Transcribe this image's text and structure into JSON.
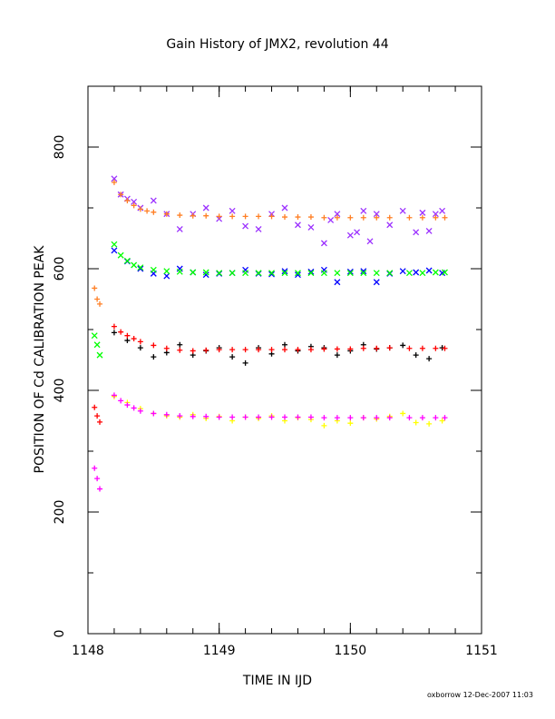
{
  "chart_data": {
    "type": "scatter",
    "title": "Gain History of JMX2, revolution 44",
    "xlabel": "TIME IN IJD",
    "ylabel": "POSITION OF Cd CALIBRATION PEAK",
    "xlim": [
      1148,
      1151
    ],
    "ylim": [
      0,
      900
    ],
    "xticks": [
      1148,
      1149,
      1150,
      1151
    ],
    "yticks": [
      0,
      200,
      400,
      600,
      800
    ],
    "xtick_labels": [
      "1148",
      "1149",
      "1150",
      "1151"
    ],
    "ytick_labels": [
      "0",
      "200",
      "400",
      "600",
      "800"
    ],
    "grid": false,
    "legend": "none",
    "footer": "oxborrow 12-Dec-2007 11:03",
    "colors": {
      "purple": "#9b30ff",
      "orange": "#ff7f24",
      "blue": "#0000ff",
      "green": "#00ff00",
      "black": "#000000",
      "red": "#ff0000",
      "yellow": "#ffff00",
      "magenta": "#ff00ff"
    },
    "series": [
      {
        "color": "purple",
        "marker": "x",
        "points": [
          [
            1148.2,
            748
          ],
          [
            1148.25,
            722
          ],
          [
            1148.3,
            715
          ],
          [
            1148.35,
            710
          ],
          [
            1148.4,
            700
          ],
          [
            1148.5,
            712
          ],
          [
            1148.6,
            690
          ],
          [
            1148.7,
            665
          ],
          [
            1148.8,
            690
          ],
          [
            1148.9,
            700
          ],
          [
            1149.0,
            682
          ],
          [
            1149.1,
            695
          ],
          [
            1149.2,
            670
          ],
          [
            1149.3,
            665
          ],
          [
            1149.4,
            690
          ],
          [
            1149.5,
            700
          ],
          [
            1149.6,
            672
          ],
          [
            1149.7,
            668
          ],
          [
            1149.8,
            642
          ],
          [
            1149.85,
            680
          ],
          [
            1149.9,
            690
          ],
          [
            1150.0,
            655
          ],
          [
            1150.05,
            660
          ],
          [
            1150.1,
            695
          ],
          [
            1150.15,
            645
          ],
          [
            1150.2,
            690
          ],
          [
            1150.3,
            672
          ],
          [
            1150.4,
            695
          ],
          [
            1150.5,
            660
          ],
          [
            1150.55,
            692
          ],
          [
            1150.6,
            662
          ],
          [
            1150.65,
            690
          ],
          [
            1150.7,
            695
          ]
        ]
      },
      {
        "color": "orange",
        "marker": "+",
        "points": [
          [
            1148.05,
            568
          ],
          [
            1148.07,
            550
          ],
          [
            1148.09,
            542
          ],
          [
            1148.2,
            742
          ],
          [
            1148.25,
            722
          ],
          [
            1148.3,
            712
          ],
          [
            1148.35,
            704
          ],
          [
            1148.4,
            698
          ],
          [
            1148.45,
            695
          ],
          [
            1148.5,
            693
          ],
          [
            1148.6,
            690
          ],
          [
            1148.7,
            688
          ],
          [
            1148.8,
            687
          ],
          [
            1148.9,
            687
          ],
          [
            1149.0,
            686
          ],
          [
            1149.1,
            686
          ],
          [
            1149.2,
            686
          ],
          [
            1149.3,
            686
          ],
          [
            1149.4,
            686
          ],
          [
            1149.5,
            685
          ],
          [
            1149.6,
            685
          ],
          [
            1149.7,
            685
          ],
          [
            1149.8,
            684
          ],
          [
            1149.9,
            684
          ],
          [
            1150.0,
            684
          ],
          [
            1150.1,
            684
          ],
          [
            1150.2,
            684
          ],
          [
            1150.3,
            684
          ],
          [
            1150.45,
            684
          ],
          [
            1150.55,
            684
          ],
          [
            1150.65,
            684
          ],
          [
            1150.72,
            684
          ]
        ]
      },
      {
        "color": "blue",
        "marker": "x",
        "points": [
          [
            1148.2,
            630
          ],
          [
            1148.3,
            612
          ],
          [
            1148.4,
            600
          ],
          [
            1148.5,
            592
          ],
          [
            1148.6,
            588
          ],
          [
            1148.7,
            600
          ],
          [
            1148.8,
            594
          ],
          [
            1148.9,
            590
          ],
          [
            1149.0,
            592
          ],
          [
            1149.1,
            593
          ],
          [
            1149.2,
            598
          ],
          [
            1149.3,
            592
          ],
          [
            1149.4,
            591
          ],
          [
            1149.5,
            596
          ],
          [
            1149.6,
            590
          ],
          [
            1149.7,
            595
          ],
          [
            1149.8,
            598
          ],
          [
            1149.9,
            578
          ],
          [
            1150.0,
            595
          ],
          [
            1150.1,
            596
          ],
          [
            1150.2,
            578
          ],
          [
            1150.3,
            592
          ],
          [
            1150.4,
            596
          ],
          [
            1150.5,
            594
          ],
          [
            1150.6,
            597
          ],
          [
            1150.7,
            593
          ]
        ]
      },
      {
        "color": "green",
        "marker": "x",
        "points": [
          [
            1148.05,
            490
          ],
          [
            1148.07,
            475
          ],
          [
            1148.09,
            458
          ],
          [
            1148.2,
            640
          ],
          [
            1148.25,
            622
          ],
          [
            1148.3,
            613
          ],
          [
            1148.35,
            606
          ],
          [
            1148.4,
            602
          ],
          [
            1148.5,
            598
          ],
          [
            1148.6,
            596
          ],
          [
            1148.7,
            595
          ],
          [
            1148.8,
            594
          ],
          [
            1148.9,
            594
          ],
          [
            1149.0,
            593
          ],
          [
            1149.1,
            593
          ],
          [
            1149.2,
            593
          ],
          [
            1149.3,
            593
          ],
          [
            1149.4,
            593
          ],
          [
            1149.5,
            593
          ],
          [
            1149.6,
            593
          ],
          [
            1149.7,
            593
          ],
          [
            1149.8,
            593
          ],
          [
            1149.9,
            593
          ],
          [
            1150.0,
            593
          ],
          [
            1150.1,
            593
          ],
          [
            1150.2,
            593
          ],
          [
            1150.3,
            593
          ],
          [
            1150.45,
            593
          ],
          [
            1150.55,
            593
          ],
          [
            1150.65,
            594
          ],
          [
            1150.72,
            594
          ]
        ]
      },
      {
        "color": "black",
        "marker": "+",
        "points": [
          [
            1148.2,
            495
          ],
          [
            1148.3,
            482
          ],
          [
            1148.4,
            470
          ],
          [
            1148.5,
            455
          ],
          [
            1148.6,
            462
          ],
          [
            1148.7,
            475
          ],
          [
            1148.8,
            458
          ],
          [
            1148.9,
            465
          ],
          [
            1149.0,
            470
          ],
          [
            1149.1,
            455
          ],
          [
            1149.2,
            445
          ],
          [
            1149.3,
            470
          ],
          [
            1149.4,
            460
          ],
          [
            1149.5,
            475
          ],
          [
            1149.6,
            465
          ],
          [
            1149.7,
            472
          ],
          [
            1149.8,
            470
          ],
          [
            1149.9,
            458
          ],
          [
            1150.0,
            465
          ],
          [
            1150.1,
            475
          ],
          [
            1150.2,
            468
          ],
          [
            1150.3,
            470
          ],
          [
            1150.4,
            474
          ],
          [
            1150.5,
            458
          ],
          [
            1150.6,
            452
          ],
          [
            1150.7,
            470
          ]
        ]
      },
      {
        "color": "red",
        "marker": "+",
        "points": [
          [
            1148.05,
            372
          ],
          [
            1148.07,
            358
          ],
          [
            1148.09,
            348
          ],
          [
            1148.2,
            505
          ],
          [
            1148.25,
            496
          ],
          [
            1148.3,
            490
          ],
          [
            1148.35,
            485
          ],
          [
            1148.4,
            480
          ],
          [
            1148.5,
            474
          ],
          [
            1148.6,
            469
          ],
          [
            1148.7,
            466
          ],
          [
            1148.8,
            465
          ],
          [
            1148.9,
            466
          ],
          [
            1149.0,
            467
          ],
          [
            1149.1,
            467
          ],
          [
            1149.2,
            467
          ],
          [
            1149.3,
            467
          ],
          [
            1149.4,
            467
          ],
          [
            1149.5,
            467
          ],
          [
            1149.6,
            467
          ],
          [
            1149.7,
            467
          ],
          [
            1149.8,
            468
          ],
          [
            1149.9,
            468
          ],
          [
            1150.0,
            468
          ],
          [
            1150.1,
            469
          ],
          [
            1150.2,
            469
          ],
          [
            1150.3,
            470
          ],
          [
            1150.45,
            469
          ],
          [
            1150.55,
            469
          ],
          [
            1150.65,
            469
          ],
          [
            1150.72,
            469
          ]
        ]
      },
      {
        "color": "yellow",
        "marker": "+",
        "points": [
          [
            1148.2,
            390
          ],
          [
            1148.3,
            380
          ],
          [
            1148.4,
            370
          ],
          [
            1148.5,
            362
          ],
          [
            1148.6,
            358
          ],
          [
            1148.7,
            356
          ],
          [
            1148.8,
            360
          ],
          [
            1148.9,
            354
          ],
          [
            1149.0,
            357
          ],
          [
            1149.1,
            350
          ],
          [
            1149.2,
            356
          ],
          [
            1149.3,
            354
          ],
          [
            1149.4,
            358
          ],
          [
            1149.5,
            350
          ],
          [
            1149.6,
            355
          ],
          [
            1149.7,
            352
          ],
          [
            1149.8,
            342
          ],
          [
            1149.9,
            350
          ],
          [
            1150.0,
            346
          ],
          [
            1150.1,
            355
          ],
          [
            1150.2,
            353
          ],
          [
            1150.3,
            357
          ],
          [
            1150.4,
            362
          ],
          [
            1150.5,
            347
          ],
          [
            1150.6,
            345
          ],
          [
            1150.7,
            350
          ]
        ]
      },
      {
        "color": "magenta",
        "marker": "+",
        "points": [
          [
            1148.05,
            272
          ],
          [
            1148.07,
            255
          ],
          [
            1148.09,
            238
          ],
          [
            1148.2,
            392
          ],
          [
            1148.25,
            383
          ],
          [
            1148.3,
            376
          ],
          [
            1148.35,
            371
          ],
          [
            1148.4,
            366
          ],
          [
            1148.5,
            362
          ],
          [
            1148.6,
            360
          ],
          [
            1148.7,
            358
          ],
          [
            1148.8,
            357
          ],
          [
            1148.9,
            357
          ],
          [
            1149.0,
            356
          ],
          [
            1149.1,
            356
          ],
          [
            1149.2,
            356
          ],
          [
            1149.3,
            356
          ],
          [
            1149.4,
            356
          ],
          [
            1149.5,
            356
          ],
          [
            1149.6,
            356
          ],
          [
            1149.7,
            356
          ],
          [
            1149.8,
            355
          ],
          [
            1149.9,
            355
          ],
          [
            1150.0,
            355
          ],
          [
            1150.1,
            355
          ],
          [
            1150.2,
            355
          ],
          [
            1150.3,
            355
          ],
          [
            1150.45,
            355
          ],
          [
            1150.55,
            355
          ],
          [
            1150.65,
            355
          ],
          [
            1150.72,
            355
          ]
        ]
      }
    ]
  }
}
